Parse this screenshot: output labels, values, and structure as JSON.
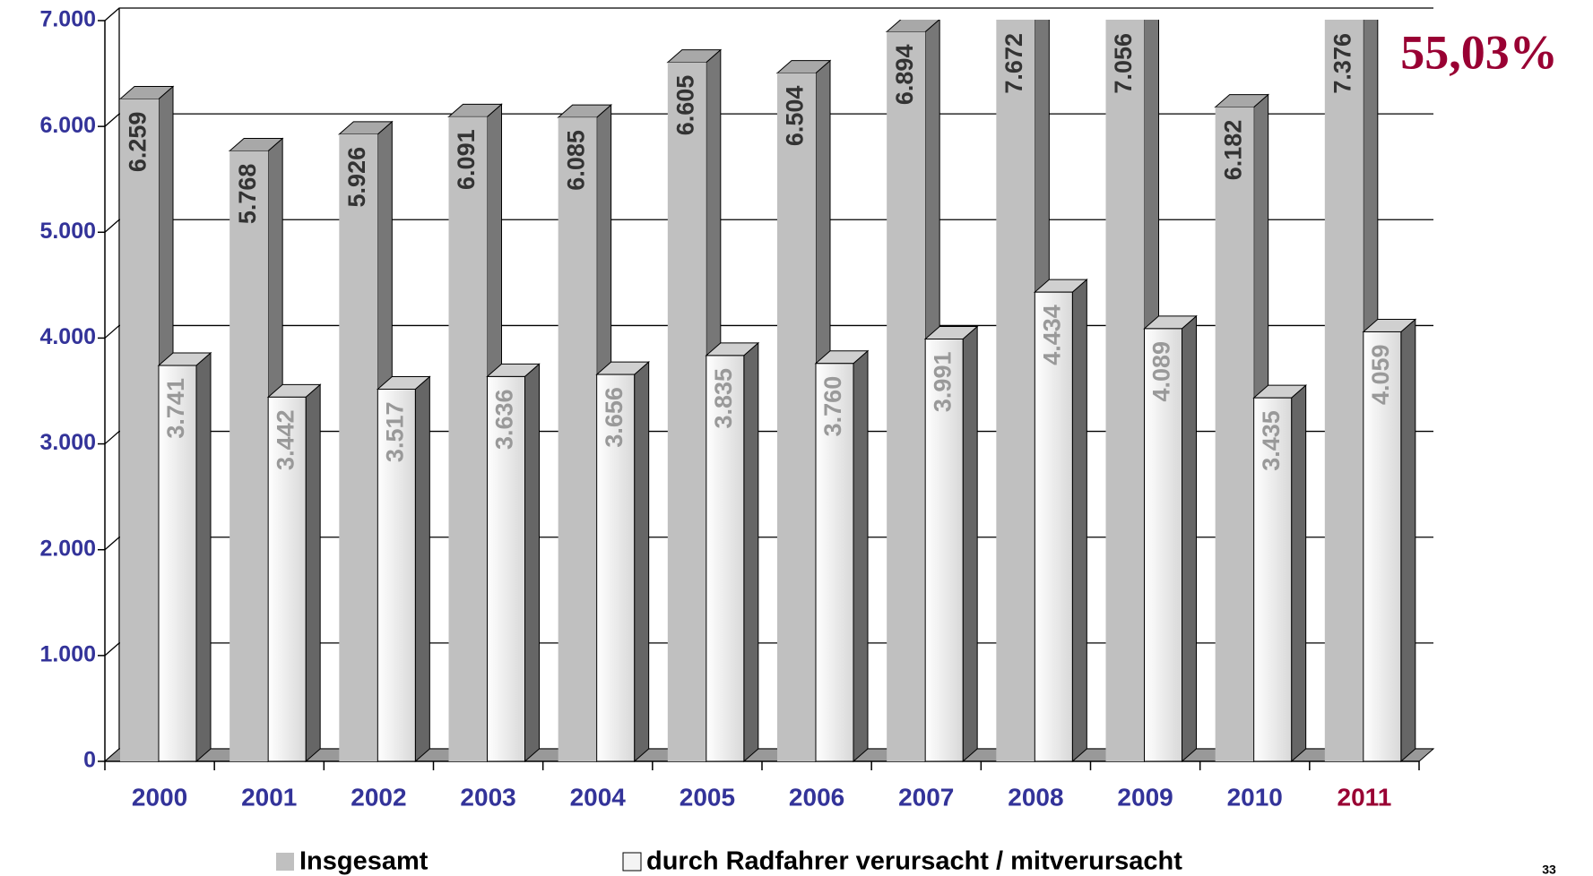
{
  "chart_data": {
    "type": "bar3d",
    "categories": [
      "2000",
      "2001",
      "2002",
      "2003",
      "2004",
      "2005",
      "2006",
      "2007",
      "2008",
      "2009",
      "2010",
      "2011"
    ],
    "x_label_colors": [
      "#333399",
      "#333399",
      "#333399",
      "#333399",
      "#333399",
      "#333399",
      "#333399",
      "#333399",
      "#333399",
      "#333399",
      "#333399",
      "#990033"
    ],
    "series": [
      {
        "name": "Insgesamt",
        "color": "#c0c0c0",
        "values": [
          6259,
          5768,
          5926,
          6091,
          6085,
          6605,
          6504,
          6894,
          7672,
          7056,
          6182,
          7376
        ],
        "value_labels": [
          "6.259",
          "5.768",
          "5.926",
          "6.091",
          "6.085",
          "6.605",
          "6.504",
          "6.894",
          "7.672",
          "7.056",
          "6.182",
          "7.376"
        ]
      },
      {
        "name": "durch Radfahrer verursacht / mitverursacht",
        "color": "#f4f4f4",
        "values": [
          3741,
          3442,
          3517,
          3636,
          3656,
          3835,
          3760,
          3991,
          4434,
          4089,
          3435,
          4059
        ],
        "value_labels": [
          "3.741",
          "3.442",
          "3.517",
          "3.636",
          "3.656",
          "3.835",
          "3.760",
          "3.991",
          "4.434",
          "4.089",
          "3.435",
          "4.059"
        ]
      }
    ],
    "ylim": [
      0,
      7000
    ],
    "yticks": [
      0,
      {
        "value": 1000,
        "label": "1.000"
      },
      {
        "value": 2000,
        "label": "2.000"
      },
      {
        "value": 3000,
        "label": "3.000"
      },
      {
        "value": 4000,
        "label": "4.000"
      },
      {
        "value": 5000,
        "label": "5.000"
      },
      {
        "value": 6000,
        "label": "6.000"
      },
      {
        "value": 7000,
        "label": "7.000"
      }
    ],
    "grid": true,
    "legend": "bottom",
    "annotation": "55,03%",
    "page_number": "33"
  }
}
